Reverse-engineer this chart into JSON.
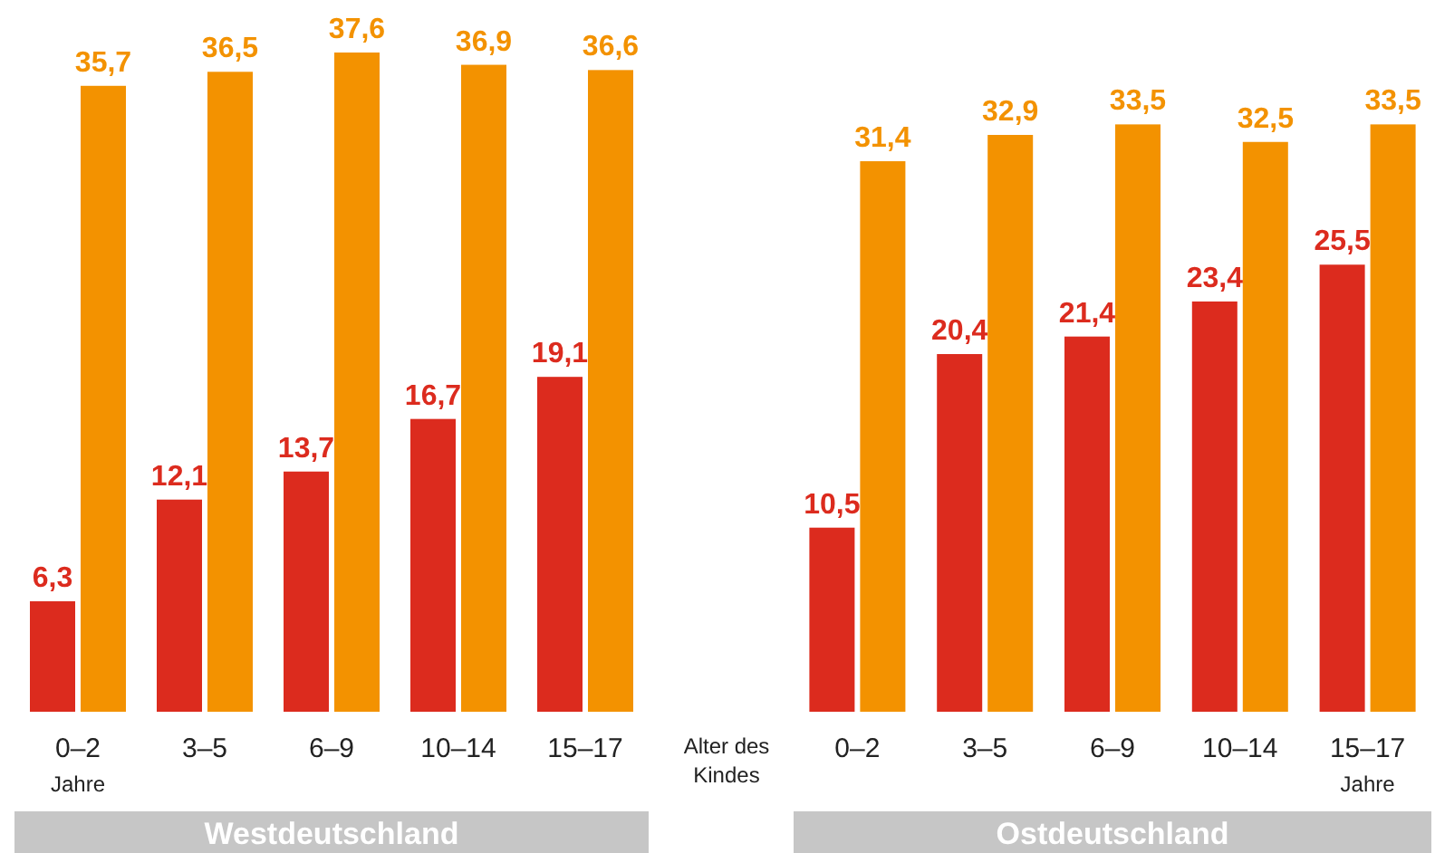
{
  "chart_data": [
    {
      "type": "bar",
      "title": "Westdeutschland",
      "categories": [
        "0–2",
        "3–5",
        "6–9",
        "10–14",
        "15–17"
      ],
      "series": [
        {
          "color": "#dc2b1e",
          "values": [
            6.3,
            12.1,
            13.7,
            16.7,
            19.1
          ],
          "value_labels": [
            "6,3",
            "12,1",
            "13,7",
            "16,7",
            "19,1"
          ]
        },
        {
          "color": "#f39200",
          "values": [
            35.7,
            36.5,
            37.6,
            36.9,
            36.6
          ],
          "value_labels": [
            "35,7",
            "36,5",
            "37,6",
            "36,9",
            "36,6"
          ]
        }
      ],
      "annotations": [
        "Jahre"
      ]
    },
    {
      "type": "bar",
      "title": "Ostdeutschland",
      "xlabel": "Alter des Kindes",
      "categories": [
        "0–2",
        "3–5",
        "6–9",
        "10–14",
        "15–17"
      ],
      "series": [
        {
          "color": "#dc2b1e",
          "values": [
            10.5,
            20.4,
            21.4,
            23.4,
            25.5
          ],
          "value_labels": [
            "10,5",
            "20,4",
            "21,4",
            "23,4",
            "25,5"
          ]
        },
        {
          "color": "#f39200",
          "values": [
            31.4,
            32.9,
            33.5,
            32.5,
            33.5
          ],
          "value_labels": [
            "31,4",
            "32,9",
            "33,5",
            "32,5",
            "33,5"
          ]
        }
      ],
      "annotations": [
        "Jahre"
      ]
    }
  ]
}
